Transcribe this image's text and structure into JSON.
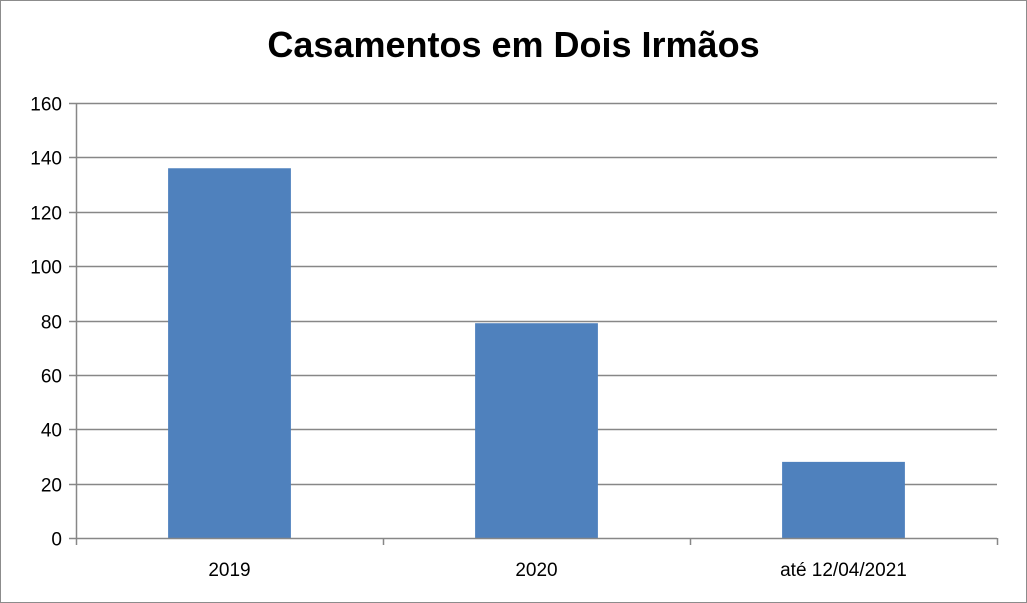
{
  "chart_data": {
    "type": "bar",
    "title": "Casamentos em Dois Irmãos",
    "categories": [
      "2019",
      "2020",
      "até 12/04/2021"
    ],
    "values": [
      136,
      79,
      28
    ],
    "ylim": [
      0,
      160
    ],
    "yticks": [
      0,
      20,
      40,
      60,
      80,
      100,
      120,
      140,
      160
    ],
    "grid": true,
    "legend": "none",
    "bar_color": "#4f81bd",
    "gridline_color": "#878787",
    "axis_color": "#878787"
  }
}
